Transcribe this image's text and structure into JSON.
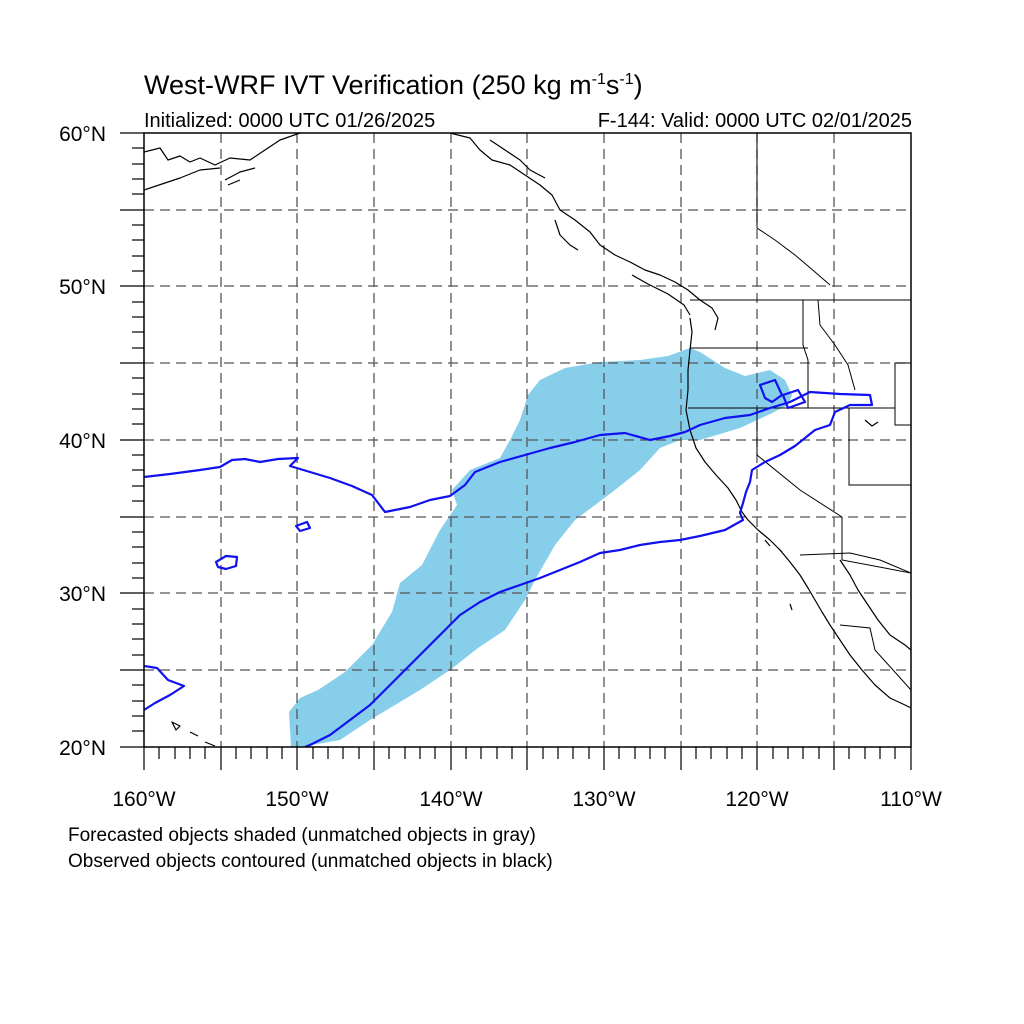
{
  "title": {
    "prefix": "West-WRF IVT Verification (250 kg m",
    "exp1": "-1",
    "mid": "s",
    "exp2": "-1",
    "suffix": ")"
  },
  "subtitle_left": "Initialized: 0000 UTC 01/26/2025",
  "subtitle_right": "F-144: Valid: 0000 UTC 02/01/2025",
  "lon_labels": [
    "160°W",
    "150°W",
    "140°W",
    "130°W",
    "120°W",
    "110°W"
  ],
  "lat_labels": [
    "60°N",
    "50°N",
    "40°N",
    "30°N",
    "20°N"
  ],
  "footnotes": [
    "Forecasted objects shaded (unmatched objects in gray)",
    "Observed objects contoured (unmatched objects in black)"
  ],
  "colors": {
    "forecast_fill": "#87ceeb",
    "observed_contour": "#1010f0",
    "coastline": "#000000",
    "grid": "#555555"
  },
  "map_extent": {
    "lon": [
      -160,
      -110
    ],
    "lat": [
      20,
      60
    ]
  },
  "grid_lines": {
    "lon_step_deg": 5,
    "lat_step_deg": 5
  }
}
